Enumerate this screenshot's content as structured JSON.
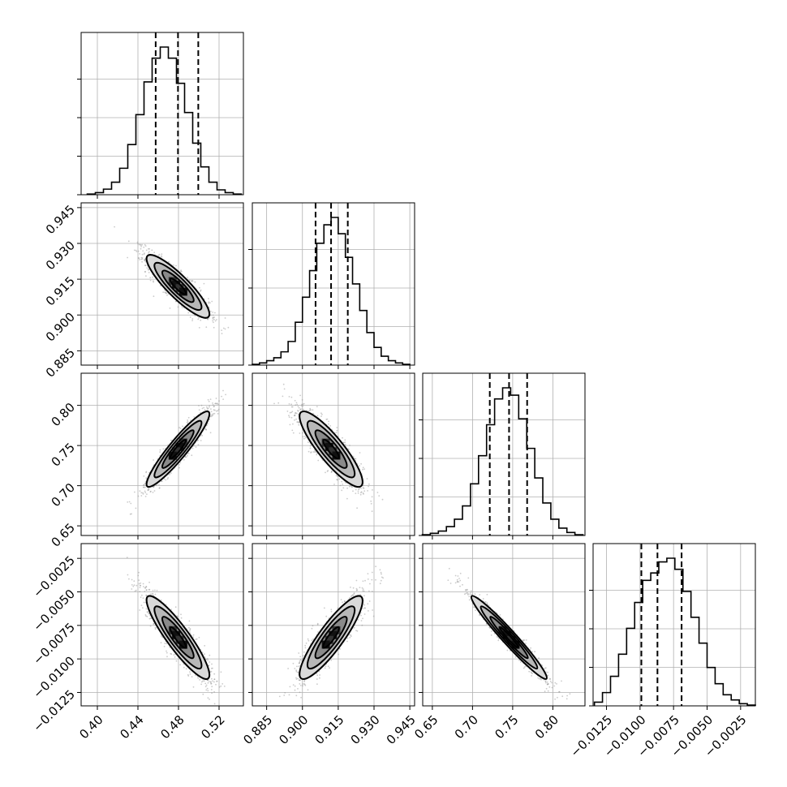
{
  "chart_data": {
    "type": "corner",
    "dims": 4,
    "axes": [
      {
        "ticks": [
          0.4,
          0.44,
          0.48,
          0.52
        ],
        "tick_labels": [
          "0.40",
          "0.44",
          "0.48",
          "0.52"
        ],
        "range": [
          0.384,
          0.544
        ]
      },
      {
        "ticks": [
          0.885,
          0.9,
          0.915,
          0.93,
          0.945
        ],
        "tick_labels": [
          "0.885",
          "0.900",
          "0.915",
          "0.930",
          "0.945"
        ],
        "range": [
          0.879,
          0.947
        ]
      },
      {
        "ticks": [
          0.65,
          0.7,
          0.75,
          0.8
        ],
        "tick_labels": [
          "0.65",
          "0.70",
          "0.75",
          "0.80"
        ],
        "range": [
          0.638,
          0.84
        ]
      },
      {
        "ticks": [
          -0.0125,
          -0.01,
          -0.0075,
          -0.005,
          -0.0025
        ],
        "tick_labels": [
          "−0.0125",
          "−0.0100",
          "−0.0075",
          "−0.0050",
          "−0.0025"
        ],
        "range": [
          -0.0135,
          -0.0014
        ]
      }
    ],
    "histograms": [
      {
        "param": 0,
        "bin_centers": [
          0.394,
          0.402,
          0.41,
          0.418,
          0.426,
          0.434,
          0.442,
          0.45,
          0.458,
          0.466,
          0.474,
          0.482,
          0.49,
          0.498,
          0.506,
          0.514,
          0.522,
          0.53,
          0.538
        ],
        "counts": [
          1,
          3,
          8,
          18,
          38,
          72,
          115,
          162,
          196,
          212,
          196,
          160,
          118,
          74,
          40,
          18,
          7,
          3,
          1
        ],
        "quantiles": [
          0.4575,
          0.4795,
          0.4995
        ]
      },
      {
        "param": 1,
        "bin_centers": [
          0.8805,
          0.8835,
          0.8865,
          0.8895,
          0.8925,
          0.8955,
          0.8985,
          0.9015,
          0.9045,
          0.9075,
          0.9105,
          0.9135,
          0.9165,
          0.9195,
          0.9225,
          0.9255,
          0.9285,
          0.9315,
          0.9345,
          0.9375,
          0.9405,
          0.9435
        ],
        "counts": [
          1,
          3,
          6,
          10,
          18,
          32,
          58,
          92,
          128,
          165,
          190,
          200,
          178,
          146,
          110,
          74,
          44,
          24,
          12,
          6,
          3,
          1
        ],
        "quantiles": [
          0.9055,
          0.912,
          0.919
        ]
      },
      {
        "param": 2,
        "bin_centers": [
          0.6425,
          0.6525,
          0.6625,
          0.6725,
          0.6825,
          0.6925,
          0.7025,
          0.7125,
          0.7225,
          0.7325,
          0.7425,
          0.7525,
          0.7625,
          0.7725,
          0.7825,
          0.7925,
          0.8025,
          0.8125,
          0.8225,
          0.8325
        ],
        "counts": [
          1,
          3,
          6,
          12,
          22,
          40,
          70,
          108,
          150,
          185,
          200,
          190,
          158,
          118,
          78,
          44,
          22,
          10,
          4,
          1
        ],
        "quantiles": [
          0.7215,
          0.7455,
          0.768
        ]
      },
      {
        "param": 3,
        "bin_centers": [
          -0.0131,
          -0.0125,
          -0.0119,
          -0.0113,
          -0.0107,
          -0.0101,
          -0.0095,
          -0.0089,
          -0.0083,
          -0.0077,
          -0.0071,
          -0.0065,
          -0.0059,
          -0.0053,
          -0.0047,
          -0.0041,
          -0.0035,
          -0.0029,
          -0.0023,
          -0.0017
        ],
        "counts": [
          5,
          18,
          40,
          70,
          105,
          140,
          170,
          180,
          195,
          200,
          185,
          155,
          120,
          85,
          52,
          30,
          15,
          8,
          3,
          1
        ],
        "quantiles": [
          -0.0099,
          -0.0087,
          -0.0069
        ]
      }
    ],
    "pairs": [
      {
        "x": 0,
        "y": 1,
        "mean": [
          0.4795,
          0.912
        ],
        "sd": [
          0.0155,
          0.0066
        ],
        "corr": -0.88
      },
      {
        "x": 0,
        "y": 2,
        "mean": [
          0.4795,
          0.7455
        ],
        "sd": [
          0.0155,
          0.0235
        ],
        "corr": 0.93
      },
      {
        "x": 1,
        "y": 2,
        "mean": [
          0.912,
          0.7455
        ],
        "sd": [
          0.0066,
          0.0235
        ],
        "corr": -0.87
      },
      {
        "x": 0,
        "y": 3,
        "mean": [
          0.4795,
          -0.0084
        ],
        "sd": [
          0.0155,
          0.00155
        ],
        "corr": -0.9
      },
      {
        "x": 1,
        "y": 3,
        "mean": [
          0.912,
          -0.0084
        ],
        "sd": [
          0.0066,
          0.00155
        ],
        "corr": 0.88
      },
      {
        "x": 2,
        "y": 3,
        "mean": [
          0.7455,
          -0.0084
        ],
        "sd": [
          0.0235,
          0.00155
        ],
        "corr": -0.97
      }
    ],
    "contour_levels_sigma": [
      0.5,
      1.0,
      1.5,
      2.0
    ],
    "grid": true
  }
}
